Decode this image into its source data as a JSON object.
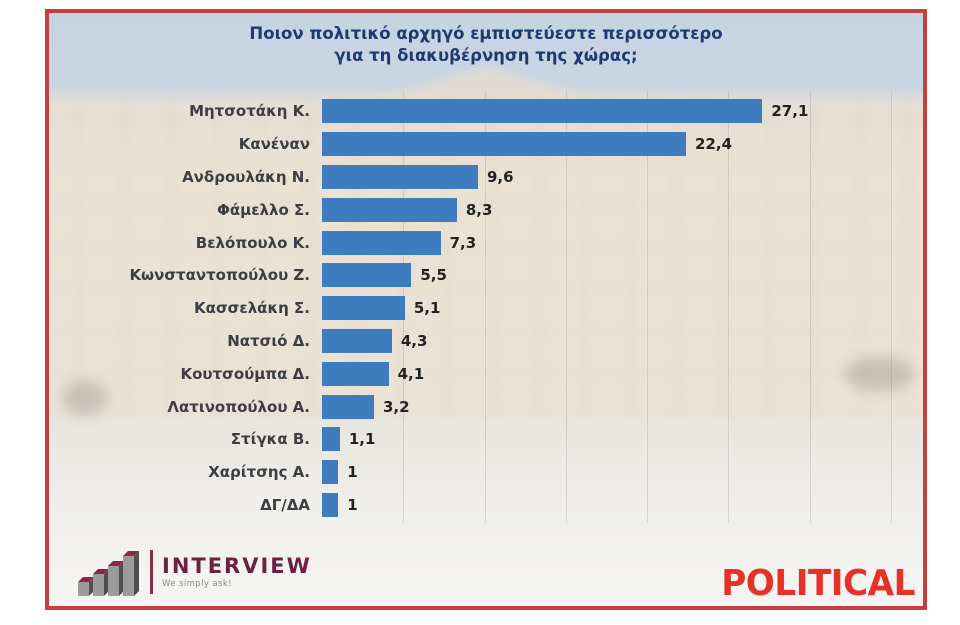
{
  "title": {
    "line1": "Ποιον πολιτικό αρχηγό εμπιστεύεστε περισσότερο",
    "line2": "για τη διακυβέρνηση της χώρας;"
  },
  "chart_data": {
    "type": "bar",
    "orientation": "horizontal",
    "title": "Ποιον πολιτικό αρχηγό εμπιστεύεστε περισσότερο για τη διακυβέρνηση της χώρας;",
    "categories": [
      "Μητσοτάκη Κ.",
      "Κανέναν",
      "Ανδρουλάκη Ν.",
      "Φάμελλο Σ.",
      "Βελόπουλο Κ.",
      "Κωνσταντοπούλου Ζ.",
      "Κασσελάκη Σ.",
      "Νατσιό Δ.",
      "Κουτσούμπα Δ.",
      "Λατινοπούλου Α.",
      "Στίγκα Β.",
      "Χαρίτσης Α.",
      "ΔΓ/ΔΑ"
    ],
    "values": [
      27.1,
      22.4,
      9.6,
      8.3,
      7.3,
      5.5,
      5.1,
      4.3,
      4.1,
      3.2,
      1.1,
      1,
      1
    ],
    "value_labels": [
      "27,1",
      "22,4",
      "9,6",
      "8,3",
      "7,3",
      "5,5",
      "5,1",
      "4,3",
      "4,1",
      "3,2",
      "1,1",
      "1",
      "1"
    ],
    "xlim": [
      0,
      36
    ],
    "grid_interval": 5,
    "grid": true,
    "legend": false,
    "bar_color": "#3d7cbf"
  },
  "footer": {
    "interview_name": "INTERVIEW",
    "interview_tagline": "We simply ask!",
    "political_name": "POLITICAL"
  },
  "colors": {
    "frame_border": "#c43f3f",
    "bar_blue": "#3d7cbf",
    "title_navy": "#1e3a6e",
    "interview_maroon": "#6d2142",
    "political_red": "#e53228"
  }
}
